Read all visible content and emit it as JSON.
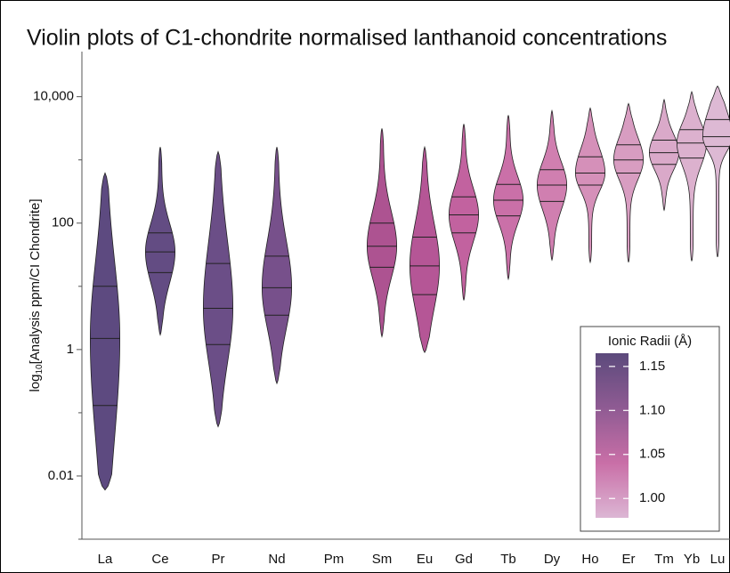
{
  "chart_data": {
    "type": "violin",
    "title": "Violin plots of C1-chondrite normalised lanthanoid concentrations",
    "ylabel": {
      "base": "log",
      "subscript": "10",
      "text": "[Analysis ppm/CI Chondrite]"
    },
    "log_scale": true,
    "ylim": [
      0.001,
      50000
    ],
    "yticks": [
      0.01,
      1,
      100,
      {
        "value": 10000,
        "label": "10,000"
      }
    ],
    "minor_yticks": [
      0.001,
      0.1,
      10,
      1000
    ],
    "categories": [
      "La",
      "Ce",
      "Pr",
      "Nd",
      "Pm",
      "Sm",
      "Eu",
      "Gd",
      "Tb",
      "Dy",
      "Ho",
      "Er",
      "Tm",
      "Yb",
      "Lu"
    ],
    "violins": [
      {
        "min": 0.006,
        "q1": 0.13,
        "median": 1.5,
        "q3": 10,
        "max": 620,
        "color": "#5d4a80"
      },
      {
        "min": 1.7,
        "q1": 16.5,
        "median": 35,
        "q3": 70,
        "max": 1600,
        "color": "#634c83"
      },
      {
        "min": 0.06,
        "q1": 1.2,
        "median": 4.5,
        "q3": 23,
        "max": 1350,
        "color": "#6b4e87"
      },
      {
        "min": 0.29,
        "q1": 3.5,
        "median": 9.5,
        "q3": 30,
        "max": 1600,
        "color": "#77508b"
      },
      null,
      {
        "min": 1.6,
        "q1": 20,
        "median": 43,
        "q3": 100,
        "max": 3150,
        "color": "#ad5391"
      },
      {
        "min": 0.9,
        "q1": 7.4,
        "median": 21,
        "q3": 60,
        "max": 1600,
        "color": "#b55696"
      },
      {
        "min": 6,
        "q1": 70,
        "median": 135,
        "q3": 260,
        "max": 3700,
        "color": "#c2629f"
      },
      {
        "min": 13,
        "q1": 130,
        "median": 230,
        "q3": 410,
        "max": 5100,
        "color": "#ca70a8"
      },
      {
        "min": 26,
        "q1": 220,
        "median": 400,
        "q3": 700,
        "max": 6000,
        "color": "#d07fb0"
      },
      {
        "min": 24,
        "q1": 400,
        "median": 620,
        "q3": 1120,
        "max": 6600,
        "color": "#d590b9"
      },
      {
        "min": 24,
        "q1": 620,
        "median": 1000,
        "q3": 1730,
        "max": 7800,
        "color": "#d89dc1"
      },
      {
        "min": 160,
        "q1": 850,
        "median": 1300,
        "q3": 2050,
        "max": 9000,
        "color": "#daa9c9"
      },
      {
        "min": 25,
        "q1": 1070,
        "median": 1850,
        "q3": 3000,
        "max": 12000,
        "color": "#dcb1ce"
      },
      {
        "min": 29,
        "q1": 1630,
        "median": 2330,
        "q3": 4340,
        "max": 14700,
        "color": "#ddb9d4"
      }
    ],
    "colorbar": {
      "title": "Ionic Radii (Å)",
      "clim": [
        0.978,
        1.165
      ],
      "ticks": [
        1.15,
        {
          "value": 1.1,
          "label": "1.10"
        },
        1.05,
        {
          "value": 1.0,
          "label": "1.00"
        }
      ],
      "colors": [
        "#dcb6d4",
        "#c96fa7",
        "#8f5b93",
        "#5c4a7c"
      ]
    }
  }
}
